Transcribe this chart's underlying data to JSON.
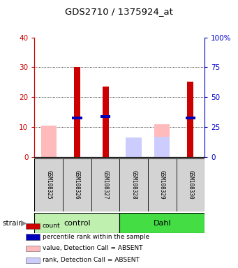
{
  "title": "GDS2710 / 1375924_at",
  "samples": [
    "GSM108325",
    "GSM108326",
    "GSM108327",
    "GSM108328",
    "GSM108329",
    "GSM108330"
  ],
  "groups": [
    {
      "name": "control",
      "indices": [
        0,
        1,
        2
      ],
      "color": "#c0f0b0"
    },
    {
      "name": "Dahl",
      "indices": [
        3,
        4,
        5
      ],
      "color": "#44dd44"
    }
  ],
  "red_bars": [
    0,
    30.2,
    23.5,
    0,
    0,
    25.3
  ],
  "blue_markers": [
    0,
    13.0,
    13.5,
    0,
    0,
    13.0
  ],
  "pink_bars": [
    10.5,
    0,
    0,
    5.8,
    11.0,
    0
  ],
  "lavender_bars": [
    0,
    0,
    0,
    6.5,
    6.8,
    0
  ],
  "ylim_left": [
    0,
    40
  ],
  "ylim_right": [
    0,
    100
  ],
  "yticks_left": [
    0,
    10,
    20,
    30,
    40
  ],
  "yticks_right": [
    0,
    25,
    50,
    75,
    100
  ],
  "ytick_labels_right": [
    "0",
    "25",
    "50",
    "75",
    "100%"
  ],
  "left_axis_color": "#cc0000",
  "right_axis_color": "#0000cc",
  "red_color": "#cc0000",
  "blue_color": "#0000bb",
  "pink_color": "#ffbbbb",
  "lavender_color": "#ccccff",
  "bg_color": "#d3d3d3",
  "legend_items": [
    {
      "color": "#cc0000",
      "label": "count"
    },
    {
      "color": "#0000bb",
      "label": "percentile rank within the sample"
    },
    {
      "color": "#ffbbbb",
      "label": "value, Detection Call = ABSENT"
    },
    {
      "color": "#ccccff",
      "label": "rank, Detection Call = ABSENT"
    }
  ]
}
